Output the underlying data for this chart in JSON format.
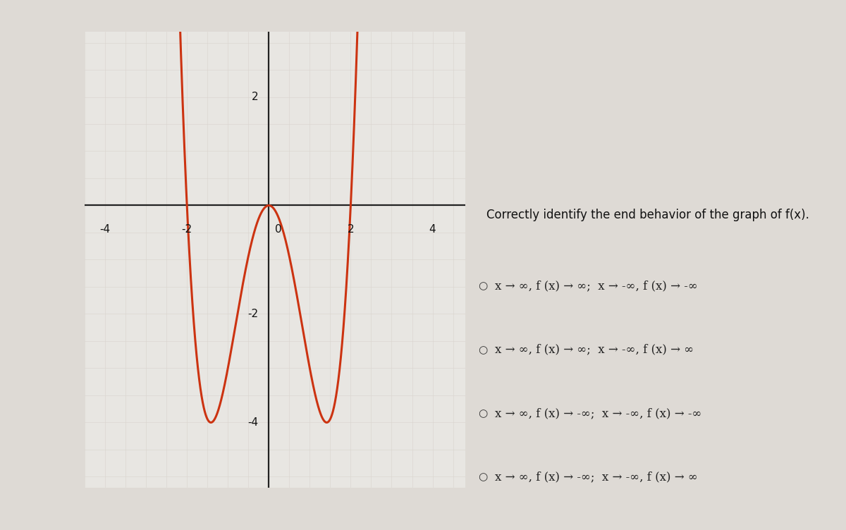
{
  "title": "Correctly identify the end behavior of the graph of f(x).",
  "curve_color": "#cc3311",
  "curve_linewidth": 2.2,
  "graph_bg_color": "#e8e6e2",
  "grid_major_color": "#c8c4be",
  "grid_minor_color": "#d8d4ce",
  "axis_color": "#222222",
  "page_bg_color": "#dedad5",
  "right_bg_color": "#e8e4de",
  "xlim": [
    -4.5,
    4.8
  ],
  "ylim": [
    -5.2,
    3.2
  ],
  "xticks": [
    -4,
    -2,
    0,
    2,
    4
  ],
  "yticks": [
    -4,
    -2,
    0,
    2
  ],
  "options": [
    "x → ∞, f (x) → ∞;  x → -∞, f (x) → -∞",
    "x → ∞, f (x) → ∞;  x → -∞, f (x) → ∞",
    "x → ∞, f (x) → -∞;  x → -∞, f (x) → -∞",
    "x → ∞, f (x) → -∞;  x → -∞, f (x) → ∞"
  ],
  "font_size_options": 12,
  "font_size_title": 12
}
